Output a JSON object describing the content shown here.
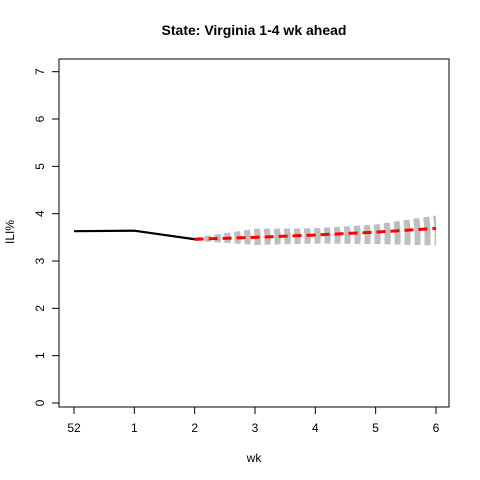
{
  "chart_data": {
    "type": "line",
    "title": "State: Virginia 1-4 wk ahead",
    "xlabel": "wk",
    "ylabel": "ILI%",
    "x_tick_labels": [
      "52",
      "1",
      "2",
      "3",
      "4",
      "5",
      "6"
    ],
    "y_ticks": [
      0,
      1,
      2,
      3,
      4,
      5,
      6,
      7
    ],
    "ylim": [
      0,
      7
    ],
    "grid": false,
    "legend": false,
    "colors": {
      "observed": "#000000",
      "forecast_mean": "#ff0000",
      "forecast_samples": "#bebebe",
      "frame": "#000000"
    },
    "observed": {
      "x": [
        "52",
        "1",
        "2"
      ],
      "y": [
        3.63,
        3.64,
        3.46
      ]
    },
    "forecast_mean": {
      "x": [
        "2",
        "3",
        "4",
        "5",
        "6"
      ],
      "y": [
        3.46,
        3.5,
        3.55,
        3.61,
        3.69
      ]
    },
    "forecast_samples": [
      {
        "x": [
          "2",
          "3",
          "4",
          "5",
          "6"
        ],
        "y": [
          3.46,
          3.65,
          3.66,
          3.74,
          3.93
        ]
      },
      {
        "x": [
          "2",
          "3",
          "4",
          "5",
          "6"
        ],
        "y": [
          3.46,
          3.62,
          3.64,
          3.71,
          3.89
        ]
      },
      {
        "x": [
          "2",
          "3",
          "4",
          "5",
          "6"
        ],
        "y": [
          3.46,
          3.6,
          3.62,
          3.68,
          3.84
        ]
      },
      {
        "x": [
          "2",
          "3",
          "4",
          "5",
          "6"
        ],
        "y": [
          3.46,
          3.57,
          3.6,
          3.66,
          3.79
        ]
      },
      {
        "x": [
          "2",
          "3",
          "4",
          "5",
          "6"
        ],
        "y": [
          3.46,
          3.55,
          3.58,
          3.63,
          3.74
        ]
      },
      {
        "x": [
          "2",
          "3",
          "4",
          "5",
          "6"
        ],
        "y": [
          3.46,
          3.52,
          3.55,
          3.6,
          3.7
        ]
      },
      {
        "x": [
          "2",
          "3",
          "4",
          "5",
          "6"
        ],
        "y": [
          3.46,
          3.48,
          3.52,
          3.57,
          3.65
        ]
      },
      {
        "x": [
          "2",
          "3",
          "4",
          "5",
          "6"
        ],
        "y": [
          3.46,
          3.45,
          3.5,
          3.53,
          3.6
        ]
      },
      {
        "x": [
          "2",
          "3",
          "4",
          "5",
          "6"
        ],
        "y": [
          3.46,
          3.43,
          3.48,
          3.5,
          3.55
        ]
      },
      {
        "x": [
          "2",
          "3",
          "4",
          "5",
          "6"
        ],
        "y": [
          3.46,
          3.41,
          3.45,
          3.47,
          3.49
        ]
      },
      {
        "x": [
          "2",
          "3",
          "4",
          "5",
          "6"
        ],
        "y": [
          3.46,
          3.39,
          3.43,
          3.43,
          3.42
        ]
      },
      {
        "x": [
          "2",
          "3",
          "4",
          "5",
          "6"
        ],
        "y": [
          3.46,
          3.37,
          3.4,
          3.39,
          3.36
        ]
      }
    ]
  }
}
